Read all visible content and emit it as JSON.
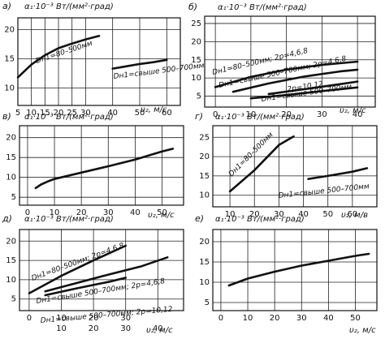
{
  "chart_data": [
    {
      "id": "a",
      "type": "line",
      "panel_label": "а)",
      "ylabel": "α₁·10⁻³ Вт/(мм²·град)",
      "xlabel": "υ₂, м/с",
      "x_ticks": [
        "5",
        "10",
        "15",
        "20",
        "25",
        "30",
        "40",
        "50",
        "60"
      ],
      "y_ticks": [
        "10",
        "15",
        "20"
      ],
      "series": [
        {
          "name": "Dн1=80–500мм",
          "x": [
            5,
            10,
            15,
            20,
            25,
            30,
            35
          ],
          "y": [
            11.8,
            14.0,
            15.6,
            16.8,
            17.6,
            18.3,
            18.9
          ]
        },
        {
          "name": "Dн1=свыше 500–700мм",
          "x": [
            40,
            45,
            50,
            55,
            60
          ],
          "y": [
            13.3,
            13.7,
            14.1,
            14.4,
            14.8
          ]
        }
      ]
    },
    {
      "id": "b",
      "type": "line",
      "panel_label": "б)",
      "ylabel": "α₁·10⁻³ Вт/(мм²·град)",
      "xlabel": "υ₂, м/с",
      "x_ticks": [
        "0",
        "10",
        "20",
        "30",
        "40"
      ],
      "y_ticks": [
        "5",
        "10",
        "15",
        "20",
        "25"
      ],
      "series": [
        {
          "name": "Dн1=80–500мм; 2p=4,6,8",
          "x": [
            0,
            10,
            20,
            30,
            40
          ],
          "y": [
            7.5,
            10.3,
            12.3,
            13.6,
            14.5
          ]
        },
        {
          "name": "Dн1=свыше 500–700мм; 2p=4,6,8",
          "x": [
            5,
            15,
            25,
            35,
            40
          ],
          "y": [
            6.2,
            8.5,
            10.4,
            11.8,
            12.3
          ]
        },
        {
          "name": "2p=10,12",
          "x": [
            15,
            25,
            35,
            40
          ],
          "y": [
            5.6,
            6.9,
            8.3,
            9.0
          ]
        },
        {
          "name": "Dн1=свыше 500–700мм",
          "x": [
            10,
            20,
            30,
            40
          ],
          "y": [
            4.4,
            5.3,
            6.4,
            7.4
          ]
        }
      ]
    },
    {
      "id": "v",
      "type": "line",
      "panel_label": "в)",
      "ylabel": "α₁·10⁻³ Вт/(мм²·град)",
      "xlabel": "υ₂, м/с",
      "x_ticks": [
        "0",
        "10",
        "20",
        "30",
        "40",
        "50"
      ],
      "y_ticks": [
        "5",
        "10",
        "15",
        "20"
      ],
      "series": [
        {
          "name": "",
          "x": [
            3,
            5,
            8,
            10,
            20,
            30,
            40,
            50,
            54
          ],
          "y": [
            7.3,
            8.2,
            9.1,
            9.6,
            11.2,
            12.8,
            14.5,
            16.5,
            17.2
          ]
        }
      ]
    },
    {
      "id": "g",
      "type": "line",
      "panel_label": "г)",
      "ylabel": "α₁·10⁻³ Вт/(мм²·град)",
      "xlabel": "υ₂, м/в",
      "x_ticks": [
        "10",
        "20",
        "30",
        "40",
        "50",
        "60"
      ],
      "y_ticks": [
        "10",
        "15",
        "20",
        "25"
      ],
      "series": [
        {
          "name": "Dн1=80–500мм",
          "x": [
            10,
            20,
            30,
            36
          ],
          "y": [
            11.0,
            16.5,
            23.0,
            25.2
          ]
        },
        {
          "name": "Dн1=свыше 500–700мм",
          "x": [
            42,
            50,
            60,
            66
          ],
          "y": [
            14.2,
            15.0,
            16.1,
            17.0
          ]
        }
      ]
    },
    {
      "id": "d",
      "type": "line",
      "panel_label": "д)",
      "ylabel": "α₁·10⁻³ Вт/(мм²·град)",
      "xlabel": "υ₂, м/с",
      "x_ticks": [
        "0",
        "10",
        "20",
        "30",
        "10",
        "20",
        "30",
        "40"
      ],
      "y_ticks": [
        "5",
        "10",
        "15",
        "20"
      ],
      "series": [
        {
          "name": "Dн1=80–500мм; 2p=4,6,8",
          "x": [
            0,
            10,
            20,
            30
          ],
          "y": [
            6.5,
            11.0,
            15.0,
            18.8
          ]
        },
        {
          "name": "Dн1=свыше 500–700мм; 2p=4,6,8",
          "x": [
            5,
            15,
            25,
            35,
            43
          ],
          "y": [
            7.0,
            9.2,
            11.4,
            13.5,
            15.8
          ]
        },
        {
          "name": "Dн1=свыше 500–700мм; 2p=10,12",
          "x": [
            5,
            15,
            25,
            30
          ],
          "y": [
            6.0,
            7.8,
            9.5,
            10.5
          ]
        }
      ]
    },
    {
      "id": "e",
      "type": "line",
      "panel_label": "е)",
      "ylabel": "α₁·10⁻³ Вт/(мм²·град)",
      "xlabel": "υ₂, м/с",
      "x_ticks": [
        "0",
        "10",
        "20",
        "30",
        "40",
        "50"
      ],
      "y_ticks": [
        "5",
        "10",
        "15",
        "20"
      ],
      "series": [
        {
          "name": "",
          "x": [
            3,
            10,
            20,
            30,
            40,
            50,
            55
          ],
          "y": [
            9.2,
            10.9,
            12.6,
            14.1,
            15.3,
            16.5,
            17.0
          ]
        }
      ]
    }
  ]
}
